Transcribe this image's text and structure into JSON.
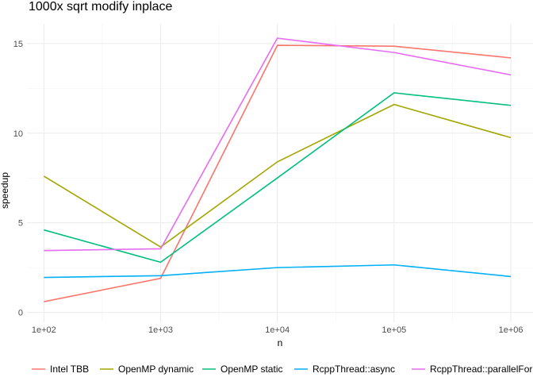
{
  "chart_data": {
    "type": "line",
    "title": "1000x sqrt modify inplace",
    "xlabel": "n",
    "ylabel": "speedup",
    "x_scale": "log10",
    "x": [
      100,
      1000,
      10000,
      100000,
      1000000
    ],
    "x_tick_labels": [
      "1e+02",
      "1e+03",
      "1e+04",
      "1e+05",
      "1e+06"
    ],
    "y_ticks": [
      0,
      5,
      10,
      15
    ],
    "y_tick_labels": [
      "0",
      "5",
      "10",
      "15"
    ],
    "ylim": [
      -0.55,
      16.1
    ],
    "grid": true,
    "legend_position": "bottom",
    "series": [
      {
        "name": "Intel TBB",
        "color": "#F8766D",
        "values": [
          0.6,
          1.9,
          14.9,
          14.85,
          14.2
        ]
      },
      {
        "name": "OpenMP dynamic",
        "color": "#A3A500",
        "values": [
          7.6,
          3.65,
          8.4,
          11.6,
          9.75
        ]
      },
      {
        "name": "OpenMP static",
        "color": "#00BF7D",
        "values": [
          4.6,
          2.8,
          7.5,
          12.25,
          11.55
        ]
      },
      {
        "name": "RcppThread::async",
        "color": "#00B0F6",
        "values": [
          1.95,
          2.05,
          2.5,
          2.65,
          2.0
        ]
      },
      {
        "name": "RcppThread::parallelFor",
        "color": "#E76BF3",
        "values": [
          3.45,
          3.55,
          15.3,
          14.5,
          13.25
        ]
      }
    ]
  }
}
